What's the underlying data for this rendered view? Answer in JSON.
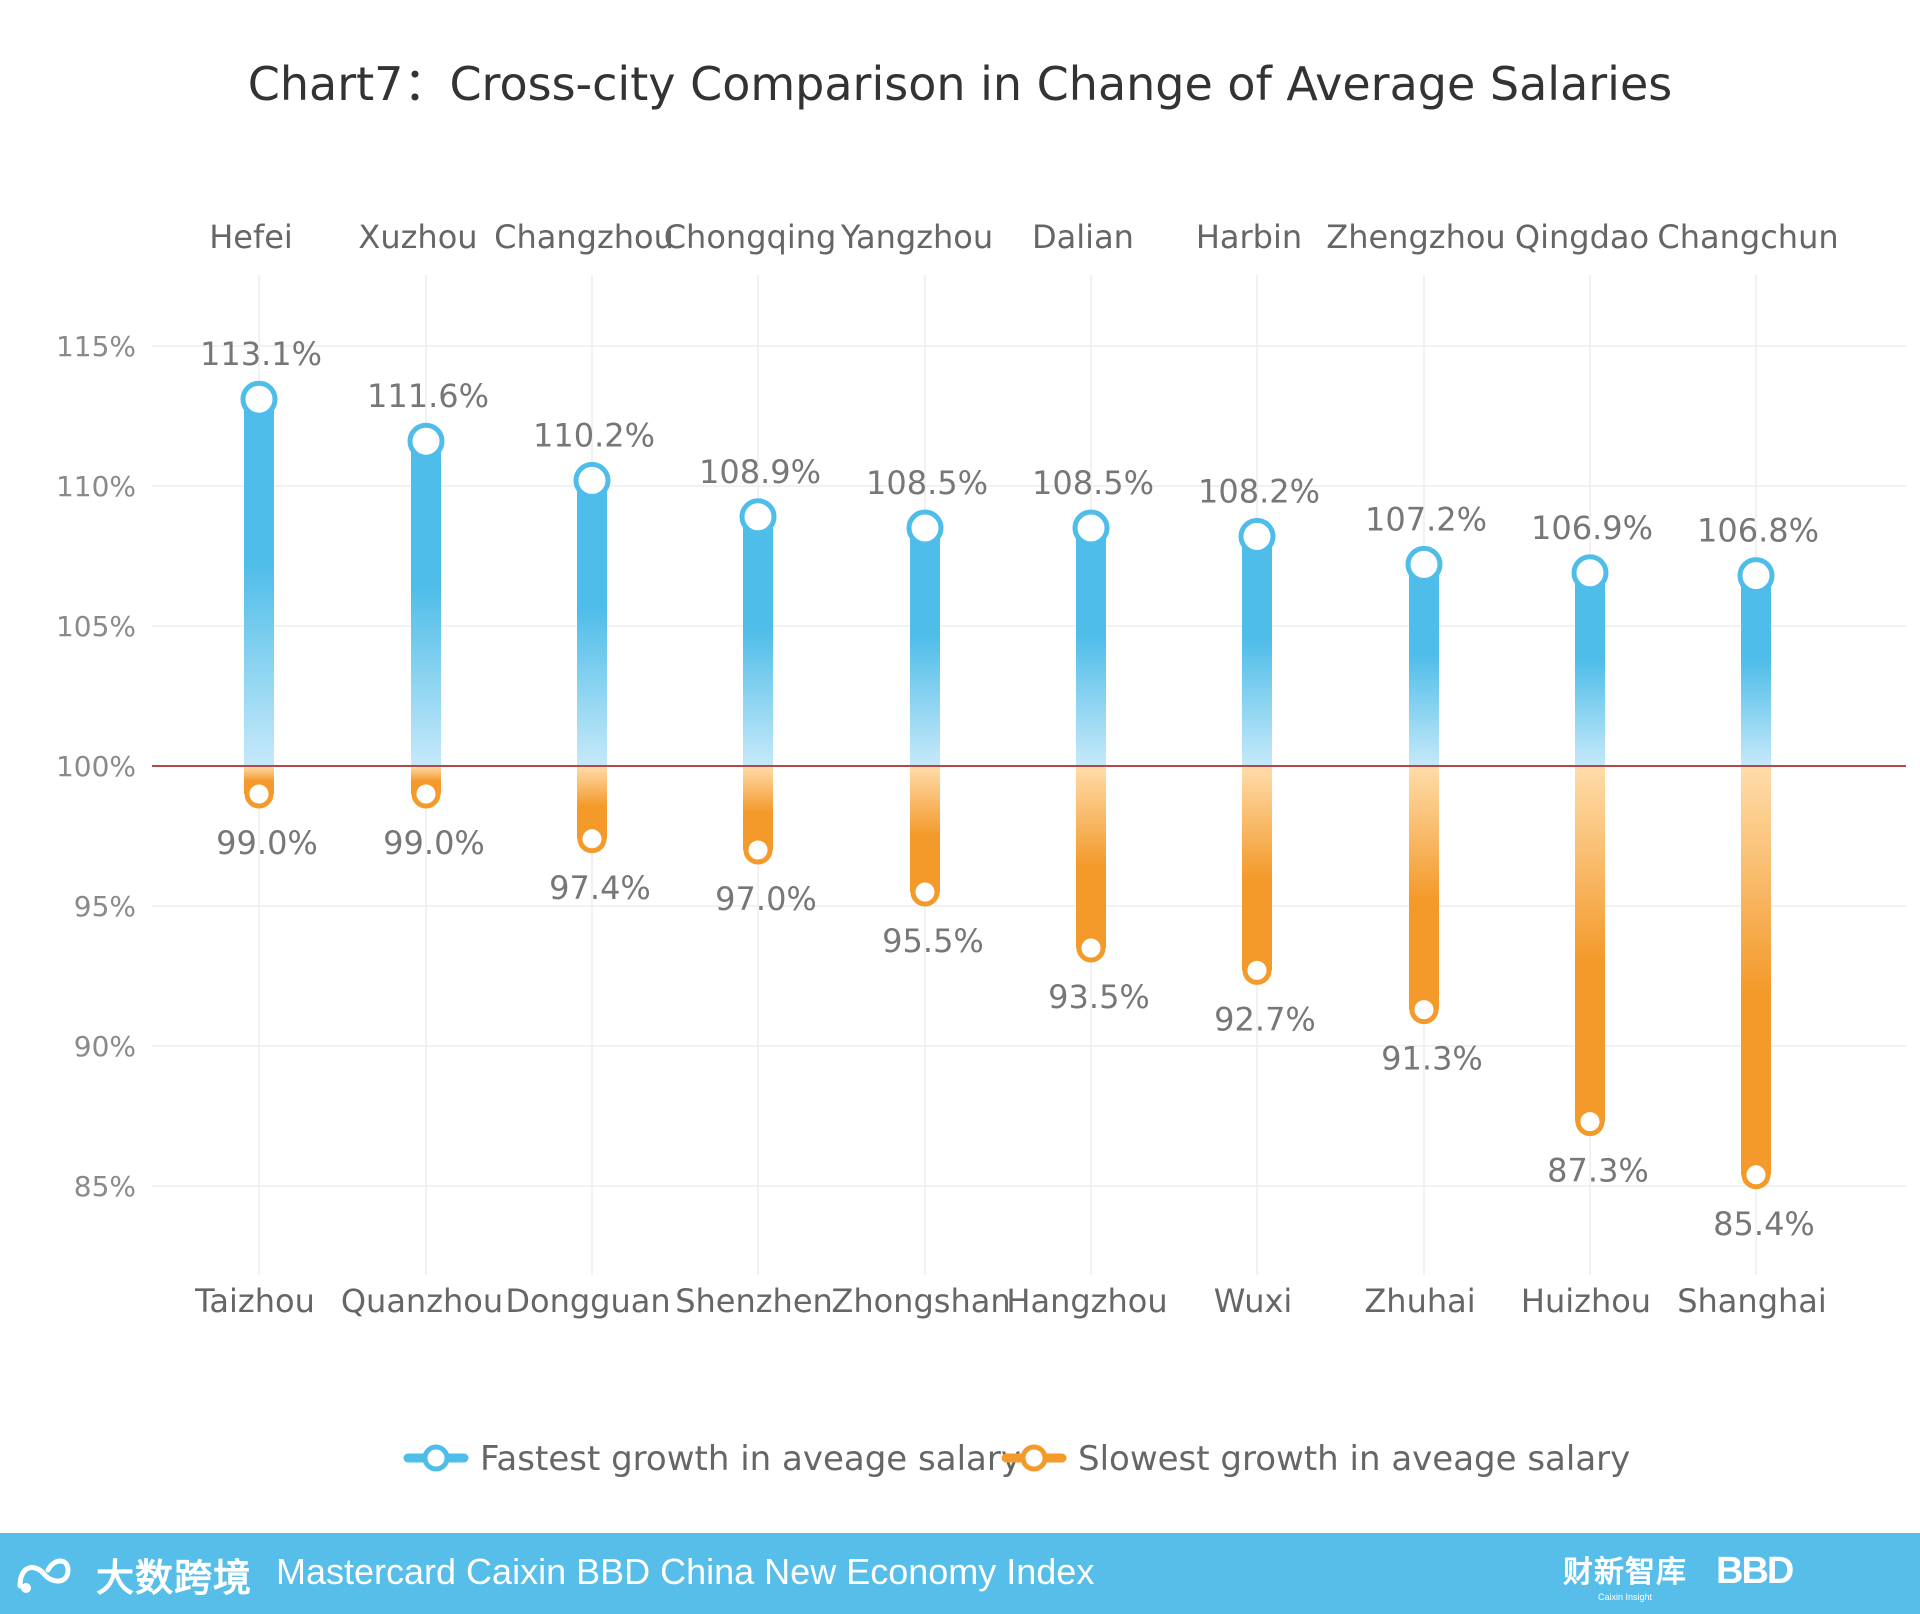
{
  "chart_data": {
    "type": "range-dot",
    "title": "Chart7：Cross-city Comparison in Change of Average Salaries",
    "baseline": 100,
    "ylim": [
      82,
      116
    ],
    "yticks": [
      85,
      90,
      95,
      100,
      105,
      110,
      115
    ],
    "ytick_labels": [
      "85%",
      "90%",
      "95%",
      "100%",
      "105%",
      "110%",
      "115%"
    ],
    "grid": true,
    "legend_position": "bottom-center",
    "series": [
      {
        "name": "Fastest growth in aveage salary",
        "color": "#4fbde9",
        "cities": [
          "Hefei",
          "Xuzhou",
          "Changzhou",
          "Chongqing",
          "Yangzhou",
          "Dalian",
          "Harbin",
          "Zhengzhou",
          "Qingdao",
          "Changchun"
        ],
        "values": [
          113.1,
          111.6,
          110.2,
          108.9,
          108.5,
          108.5,
          108.2,
          107.2,
          106.9,
          106.8
        ],
        "labels": [
          "113.1%",
          "111.6%",
          "110.2%",
          "108.9%",
          "108.5%",
          "108.5%",
          "108.2%",
          "107.2%",
          "106.9%",
          "106.8%"
        ]
      },
      {
        "name": "Slowest growth in aveage salary",
        "color": "#f39a2b",
        "cities": [
          "Taizhou",
          "Quanzhou",
          "Dongguan",
          "Shenzhen",
          "Zhongshan",
          "Hangzhou",
          "Wuxi",
          "Zhuhai",
          "Huizhou",
          "Shanghai"
        ],
        "values": [
          99.0,
          99.0,
          97.4,
          97.0,
          95.5,
          93.5,
          92.7,
          91.3,
          87.3,
          85.4
        ],
        "labels": [
          "99.0%",
          "99.0%",
          "97.4%",
          "97.0%",
          "95.5%",
          "93.5%",
          "92.7%",
          "91.3%",
          "87.3%",
          "85.4%"
        ]
      }
    ]
  },
  "colors": {
    "baseline_line": "#b04a4a",
    "grid": "#eeeeee",
    "footer_bg": "#57bde9",
    "fast_light": "#c6e9f9",
    "slow_light": "#ffdcaa"
  },
  "footer": {
    "logo_left_text": "大数跨境",
    "title": "Mastercard Caixin BBD China New Economy Index",
    "logo_caixin_cn": "财新智库",
    "logo_caixin_en": "Caixin Insight",
    "logo_bbd": "BBD"
  }
}
